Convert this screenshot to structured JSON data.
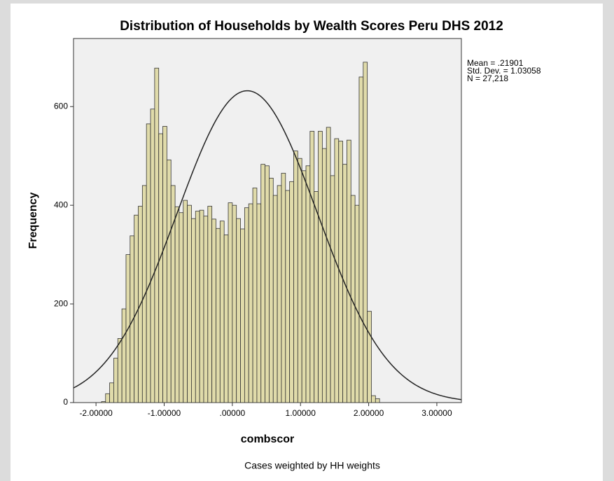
{
  "chart_data": {
    "type": "histogram",
    "title": "Distribution of Households by Wealth Scores Peru DHS 2012",
    "x_label": "combscor",
    "y_label": "Frequency",
    "footnote": "Cases weighted by HH weights",
    "stats_labels": [
      "Mean = .21901",
      "Std. Dev. = 1.03058",
      "N = 27,218"
    ],
    "normal_curve": {
      "mean": 0.21901,
      "std_dev": 1.03058,
      "n": 27218,
      "color": "#222222"
    },
    "color": "#e0dbaa",
    "bins": [
      -1.92,
      -1.86,
      -1.8,
      -1.74,
      -1.68,
      -1.62,
      -1.56,
      -1.5,
      -1.44,
      -1.38,
      -1.32,
      -1.26,
      -1.2,
      -1.14,
      -1.08,
      -1.02,
      -0.96,
      -0.9,
      -0.84,
      -0.78,
      -0.72,
      -0.66,
      -0.6,
      -0.54,
      -0.48,
      -0.42,
      -0.36,
      -0.3,
      -0.24,
      -0.18,
      -0.12,
      -0.06,
      0,
      0.06,
      0.12,
      0.18,
      0.24,
      0.3,
      0.36,
      0.42,
      0.48,
      0.54,
      0.6,
      0.66,
      0.72,
      0.78,
      0.84,
      0.9,
      0.96,
      1.02,
      1.08,
      1.14,
      1.2,
      1.26,
      1.32,
      1.38,
      1.44,
      1.5,
      1.56,
      1.62,
      1.68,
      1.74,
      1.8,
      1.86,
      1.92,
      1.98,
      2.04,
      2.1,
      2.16
    ],
    "counts": [
      2,
      18,
      40,
      90,
      130,
      190,
      300,
      338,
      380,
      398,
      440,
      565,
      595,
      678,
      545,
      560,
      492,
      440,
      397,
      385,
      410,
      400,
      373,
      388,
      390,
      378,
      398,
      372,
      353,
      368,
      340,
      405,
      400,
      373,
      352,
      395,
      403,
      435,
      403,
      483,
      480,
      455,
      420,
      440,
      465,
      430,
      448,
      510,
      495,
      470,
      480,
      550,
      428,
      550,
      515,
      558,
      460,
      535,
      530,
      483,
      532,
      420,
      400,
      660,
      690,
      185,
      14,
      8
    ],
    "xlim": [
      -2.33,
      3.36
    ],
    "ylim": [
      0,
      738
    ],
    "xticks": [
      {
        "value": -2,
        "label": "-2.00000"
      },
      {
        "value": -1,
        "label": "-1.00000"
      },
      {
        "value": 0,
        "label": ".00000"
      },
      {
        "value": 1,
        "label": "1.00000"
      },
      {
        "value": 2,
        "label": "2.00000"
      },
      {
        "value": 3,
        "label": "3.00000"
      }
    ],
    "yticks": [
      0,
      200,
      400,
      600
    ]
  }
}
